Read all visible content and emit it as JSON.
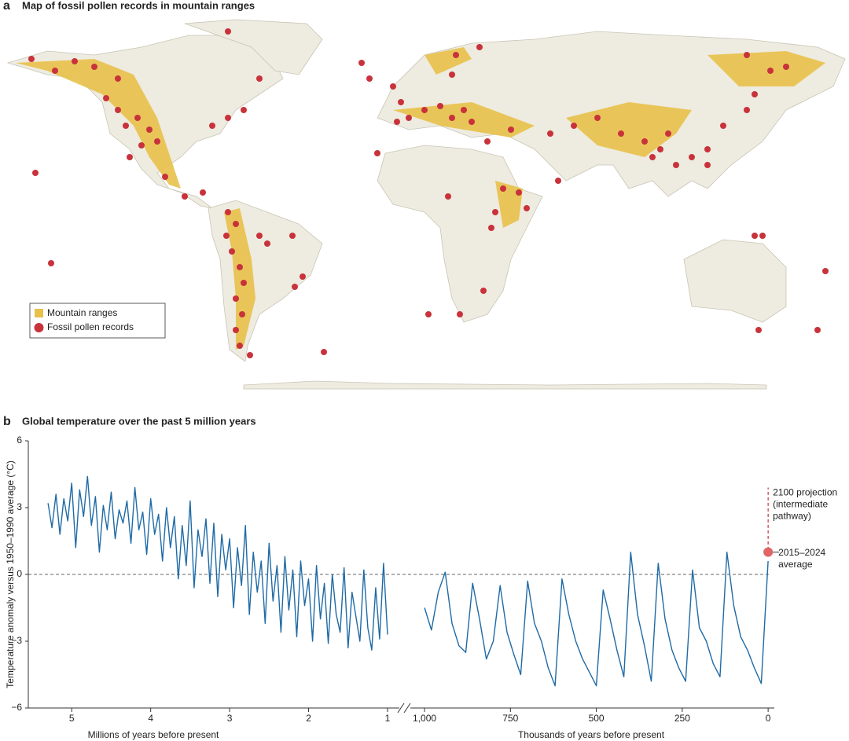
{
  "map": {
    "label": "a",
    "title": "Map of fossil pollen records in mountain ranges",
    "legend": [
      "Mountain ranges",
      "Fossil pollen records"
    ]
  },
  "chart_data": [
    {
      "type": "line",
      "label": "b",
      "title": "Global temperature over the past 5 million years",
      "ylabel": "Temperature anomaly versus 1950–1990 average (°C)",
      "xlabel": "Millions of years before present",
      "xlim": [
        5.55,
        0.93
      ],
      "ylim": [
        -6,
        6
      ],
      "xticks": [
        5,
        4,
        3,
        2,
        1
      ],
      "yticks": [
        {
          "value": -6,
          "label": "−6"
        },
        {
          "value": -3,
          "label": "−3"
        },
        0,
        3,
        6
      ],
      "reference_line": 0,
      "series": [
        {
          "color": "#1f6aa5",
          "x": [
            5.3,
            5.25,
            5.2,
            5.15,
            5.1,
            5.05,
            5.0,
            4.95,
            4.9,
            4.85,
            4.8,
            4.75,
            4.7,
            4.65,
            4.6,
            4.55,
            4.5,
            4.45,
            4.4,
            4.35,
            4.3,
            4.25,
            4.2,
            4.15,
            4.1,
            4.05,
            4.0,
            3.95,
            3.9,
            3.85,
            3.8,
            3.75,
            3.7,
            3.65,
            3.6,
            3.55,
            3.5,
            3.45,
            3.4,
            3.35,
            3.3,
            3.25,
            3.2,
            3.15,
            3.1,
            3.05,
            3.0,
            2.95,
            2.9,
            2.85,
            2.8,
            2.75,
            2.7,
            2.65,
            2.6,
            2.55,
            2.5,
            2.45,
            2.4,
            2.35,
            2.3,
            2.25,
            2.2,
            2.15,
            2.1,
            2.05,
            2.0,
            1.95,
            1.9,
            1.85,
            1.8,
            1.75,
            1.7,
            1.65,
            1.6,
            1.55,
            1.5,
            1.45,
            1.4,
            1.35,
            1.3,
            1.25,
            1.2,
            1.15,
            1.1,
            1.05,
            1.0
          ],
          "values": [
            3.2,
            2.1,
            3.6,
            1.8,
            3.4,
            2.4,
            4.1,
            1.2,
            3.8,
            2.6,
            4.4,
            2.2,
            3.5,
            1.0,
            3.1,
            2.0,
            3.7,
            1.6,
            2.9,
            2.3,
            3.3,
            1.4,
            3.9,
            2.0,
            2.8,
            0.9,
            3.4,
            1.8,
            2.7,
            0.6,
            3.0,
            1.2,
            2.6,
            -0.2,
            2.2,
            0.4,
            3.3,
            -0.6,
            2.0,
            0.8,
            2.5,
            -0.4,
            2.3,
            -1.0,
            1.8,
            0.2,
            1.6,
            -1.5,
            1.2,
            -0.5,
            2.2,
            -1.8,
            1.0,
            -0.8,
            0.6,
            -2.2,
            1.4,
            -1.2,
            0.4,
            -2.6,
            0.8,
            -1.6,
            0.2,
            -2.8,
            0.6,
            -1.4,
            -0.2,
            -3.0,
            0.4,
            -2.0,
            -0.4,
            -3.1,
            0.0,
            -1.8,
            -2.6,
            0.3,
            -3.3,
            -0.8,
            -1.9,
            -3.0,
            0.2,
            -2.4,
            -3.4,
            -0.6,
            -2.9,
            0.5,
            -2.7
          ]
        }
      ]
    },
    {
      "type": "line",
      "xlabel": "Thousands of years before present",
      "xlim": [
        1023,
        -18
      ],
      "ylim": [
        -6,
        6
      ],
      "xticks": [
        {
          "value": 1000,
          "label": "1,000"
        },
        750,
        500,
        250,
        0
      ],
      "series": [
        {
          "color": "#1f6aa5",
          "x": [
            1000,
            980,
            960,
            940,
            920,
            900,
            880,
            860,
            840,
            820,
            800,
            780,
            760,
            740,
            720,
            700,
            680,
            660,
            640,
            620,
            600,
            580,
            560,
            540,
            520,
            500,
            480,
            460,
            440,
            420,
            400,
            380,
            360,
            340,
            320,
            300,
            280,
            260,
            240,
            220,
            200,
            180,
            160,
            140,
            120,
            100,
            80,
            60,
            40,
            20,
            0
          ],
          "values": [
            -1.5,
            -2.5,
            -0.8,
            0.1,
            -2.2,
            -3.2,
            -3.5,
            -0.4,
            -2.0,
            -3.8,
            -3.0,
            -0.5,
            -2.6,
            -3.6,
            -4.5,
            -0.3,
            -2.2,
            -3.0,
            -4.2,
            -5.0,
            -0.2,
            -1.8,
            -3.0,
            -3.8,
            -4.4,
            -5.0,
            -0.7,
            -2.0,
            -3.4,
            -4.6,
            1.0,
            -1.8,
            -3.2,
            -4.8,
            0.5,
            -2.0,
            -3.4,
            -4.2,
            -4.8,
            0.2,
            -2.4,
            -3.0,
            -4.0,
            -4.6,
            1.0,
            -1.4,
            -2.8,
            -3.4,
            -4.2,
            -4.9,
            0.6
          ]
        }
      ],
      "projection": {
        "x": 0,
        "values": [
          1.1,
          3.9
        ],
        "text": [
          "2100 projection",
          "(intermediate",
          "pathway)"
        ],
        "color": "#c8333b"
      },
      "recent": {
        "x": 0,
        "value": 1.0,
        "text": [
          "2015–2024",
          "average"
        ],
        "color": "#e06666"
      }
    }
  ]
}
